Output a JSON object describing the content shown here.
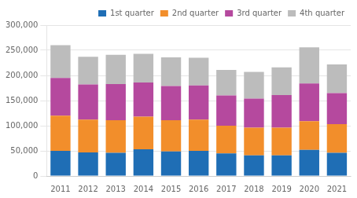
{
  "chart_data": {
    "type": "bar",
    "stacked": true,
    "categories": [
      "2011",
      "2012",
      "2013",
      "2014",
      "2015",
      "2016",
      "2017",
      "2018",
      "2019",
      "2020",
      "2021"
    ],
    "series": [
      {
        "name": "1st quarter",
        "color": "#1f6eb5",
        "values": [
          50000,
          47000,
          46000,
          53000,
          49000,
          50000,
          45000,
          41000,
          41000,
          52000,
          46000
        ]
      },
      {
        "name": "2nd quarter",
        "color": "#f28e2b",
        "values": [
          70000,
          65000,
          65000,
          65000,
          62000,
          62000,
          55000,
          55000,
          55000,
          57000,
          57000
        ]
      },
      {
        "name": "3rd quarter",
        "color": "#b5499e",
        "values": [
          75000,
          70000,
          72000,
          68000,
          68000,
          68000,
          60000,
          58000,
          65000,
          75000,
          62000
        ]
      },
      {
        "name": "4th quarter",
        "color": "#bcbcbc",
        "values": [
          65000,
          55000,
          58000,
          57000,
          57000,
          55000,
          51000,
          53000,
          55000,
          72000,
          57000
        ]
      }
    ],
    "ylim": [
      0,
      300000
    ],
    "yticks": [
      0,
      {
        "value": 50000,
        "label": "50,000"
      },
      {
        "value": 100000,
        "label": "100,000"
      },
      {
        "value": 150000,
        "label": "150,000"
      },
      {
        "value": 200000,
        "label": "200,000"
      },
      {
        "value": 250000,
        "label": "250,000"
      },
      {
        "value": 300000,
        "label": "300,000"
      }
    ],
    "grid": true,
    "legend": "upper right"
  }
}
